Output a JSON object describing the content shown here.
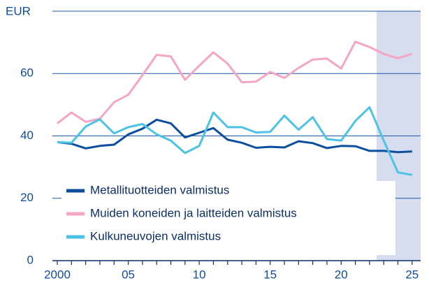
{
  "chart_data": {
    "type": "line",
    "y_unit": "EUR",
    "x": [
      2000,
      2001,
      2002,
      2003,
      2004,
      2005,
      2006,
      2007,
      2008,
      2009,
      2010,
      2011,
      2012,
      2013,
      2014,
      2015,
      2016,
      2017,
      2018,
      2019,
      2020,
      2021,
      2022,
      2023,
      2024,
      2025
    ],
    "series": [
      {
        "name": "Metallituotteiden valmistus",
        "color": "#0d4f9e",
        "values": [
          38,
          37.5,
          36,
          36.8,
          37.2,
          40.5,
          42.3,
          45.2,
          44,
          39.5,
          41,
          42.5,
          38.8,
          37.8,
          36.2,
          36.5,
          36.3,
          38.3,
          37.7,
          36.1,
          36.8,
          36.7,
          35.2,
          35.2,
          34.8,
          35
        ]
      },
      {
        "name": "Muiden koneiden ja laitteiden valmistus",
        "color": "#f4a6c4",
        "values": [
          44,
          47.5,
          44.5,
          45.5,
          50.8,
          53.2,
          59.5,
          66,
          65.5,
          58,
          62.5,
          66.8,
          63.2,
          57.2,
          57.4,
          60.5,
          58.6,
          61.8,
          64.5,
          64.8,
          61.6,
          70.2,
          68.5,
          66.3,
          64.9,
          66.3
        ]
      },
      {
        "name": "Kulkuneuvojen valmistus",
        "color": "#4cc3e6",
        "values": [
          38,
          37.8,
          43,
          45.3,
          40.8,
          42.8,
          43.8,
          40.5,
          38.5,
          34.5,
          36.8,
          47.5,
          42.8,
          42.8,
          41.1,
          41.3,
          46.5,
          42,
          46,
          39,
          38.5,
          44.8,
          49.2,
          38.5,
          28.3,
          27.5
        ]
      }
    ],
    "xlim": [
      2000,
      2025.6
    ],
    "ylim": [
      0,
      80
    ],
    "xticks": [
      2000,
      {
        "value": 2005,
        "label": "05"
      },
      {
        "value": 2010,
        "label": "10"
      },
      {
        "value": 2015,
        "label": "15"
      },
      {
        "value": 2020,
        "label": "20"
      },
      {
        "value": 2025,
        "label": "25"
      }
    ],
    "yticks": [
      0,
      20,
      40,
      60,
      80
    ],
    "shade": [
      2022.5,
      2025.6
    ],
    "shade_color": "#d6ddee",
    "grid": true,
    "legend": "center-left"
  }
}
